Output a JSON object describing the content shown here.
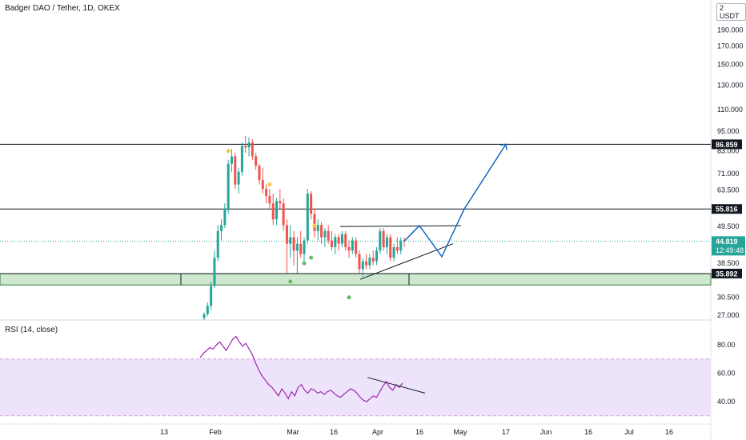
{
  "header": {
    "title": "Badger DAO / Tether, 1D, OKEX",
    "currency": "2 USDT"
  },
  "rsi": {
    "title": "RSI (14, close)"
  },
  "colors": {
    "up": "#26a69a",
    "down": "#ef5350",
    "rsi_line": "#9c27b0",
    "rsi_band": "#ede4fb",
    "zone": "#a5d6a7",
    "forecast": "#1565c0",
    "current_line": "#26a69a",
    "marker_yellow": "#f5c842",
    "marker_green": "#66bb6a"
  },
  "chart_data": {
    "type": "candlestick",
    "price_axis_ticks": [
      "190.000",
      "170.000",
      "150.000",
      "130.000",
      "110.000",
      "95.000",
      "83.000",
      "71.000",
      "63.500",
      "49.500",
      "38.500",
      "30.500",
      "27.000"
    ],
    "rsi_axis_ticks": [
      "80.00",
      "60.00",
      "40.00"
    ],
    "x_tick_labels": [
      "13",
      "Feb",
      "Mar",
      "16",
      "Apr",
      "16",
      "May",
      "17",
      "Jun",
      "16",
      "Jul",
      "16"
    ],
    "horizontal_levels": [
      {
        "label": "86.859",
        "value": 86.859
      },
      {
        "label": "55.816",
        "value": 55.816
      },
      {
        "label": "35.892",
        "value": 35.892
      }
    ],
    "current_price": {
      "label": "44.819",
      "countdown": "12:49:48",
      "value": 44.819
    },
    "candles": [
      {
        "o": 26.5,
        "h": 27.5,
        "l": 26,
        "c": 27.2
      },
      {
        "o": 27.2,
        "h": 29.5,
        "l": 26.8,
        "c": 28.8
      },
      {
        "o": 28.8,
        "h": 34,
        "l": 28,
        "c": 33
      },
      {
        "o": 33,
        "h": 42,
        "l": 32.5,
        "c": 40
      },
      {
        "o": 40,
        "h": 50,
        "l": 39,
        "c": 48
      },
      {
        "o": 48,
        "h": 52,
        "l": 45,
        "c": 50
      },
      {
        "o": 50,
        "h": 58,
        "l": 49,
        "c": 56
      },
      {
        "o": 56,
        "h": 78,
        "l": 54,
        "c": 76
      },
      {
        "o": 76,
        "h": 84,
        "l": 72,
        "c": 80
      },
      {
        "o": 80,
        "h": 82,
        "l": 64,
        "c": 66
      },
      {
        "o": 66,
        "h": 74,
        "l": 62,
        "c": 72
      },
      {
        "o": 72,
        "h": 88,
        "l": 70,
        "c": 86
      },
      {
        "o": 86,
        "h": 92,
        "l": 82,
        "c": 85
      },
      {
        "o": 85,
        "h": 91,
        "l": 80,
        "c": 88
      },
      {
        "o": 88,
        "h": 90,
        "l": 78,
        "c": 80
      },
      {
        "o": 80,
        "h": 82,
        "l": 73,
        "c": 75
      },
      {
        "o": 75,
        "h": 76,
        "l": 66,
        "c": 68
      },
      {
        "o": 68,
        "h": 74,
        "l": 62,
        "c": 64
      },
      {
        "o": 64,
        "h": 66,
        "l": 58,
        "c": 61
      },
      {
        "o": 61,
        "h": 64,
        "l": 56,
        "c": 58
      },
      {
        "o": 58,
        "h": 62,
        "l": 50,
        "c": 52
      },
      {
        "o": 52,
        "h": 60,
        "l": 50,
        "c": 59
      },
      {
        "o": 59,
        "h": 64,
        "l": 56,
        "c": 58
      },
      {
        "o": 58,
        "h": 60,
        "l": 48,
        "c": 50
      },
      {
        "o": 50,
        "h": 52,
        "l": 36,
        "c": 44
      },
      {
        "o": 44,
        "h": 50,
        "l": 40,
        "c": 46
      },
      {
        "o": 46,
        "h": 48,
        "l": 38,
        "c": 42
      },
      {
        "o": 42,
        "h": 46,
        "l": 36,
        "c": 44
      },
      {
        "o": 44,
        "h": 48,
        "l": 40,
        "c": 41
      },
      {
        "o": 41,
        "h": 46,
        "l": 38,
        "c": 45
      },
      {
        "o": 45,
        "h": 64,
        "l": 44,
        "c": 62
      },
      {
        "o": 62,
        "h": 63,
        "l": 52,
        "c": 54
      },
      {
        "o": 54,
        "h": 56,
        "l": 46,
        "c": 48
      },
      {
        "o": 48,
        "h": 52,
        "l": 45,
        "c": 50
      },
      {
        "o": 50,
        "h": 51,
        "l": 44,
        "c": 46
      },
      {
        "o": 46,
        "h": 49,
        "l": 43,
        "c": 48
      },
      {
        "o": 48,
        "h": 50,
        "l": 44,
        "c": 45
      },
      {
        "o": 45,
        "h": 48,
        "l": 42,
        "c": 43
      },
      {
        "o": 43,
        "h": 47,
        "l": 41,
        "c": 46
      },
      {
        "o": 46,
        "h": 47,
        "l": 42,
        "c": 44
      },
      {
        "o": 44,
        "h": 48,
        "l": 43,
        "c": 47
      },
      {
        "o": 47,
        "h": 48,
        "l": 42,
        "c": 43
      },
      {
        "o": 43,
        "h": 45,
        "l": 40,
        "c": 42
      },
      {
        "o": 42,
        "h": 46,
        "l": 41,
        "c": 45
      },
      {
        "o": 45,
        "h": 46,
        "l": 40,
        "c": 41
      },
      {
        "o": 41,
        "h": 42,
        "l": 36,
        "c": 37
      },
      {
        "o": 37,
        "h": 40,
        "l": 35,
        "c": 39
      },
      {
        "o": 39,
        "h": 41,
        "l": 37,
        "c": 38
      },
      {
        "o": 38,
        "h": 41,
        "l": 37,
        "c": 40
      },
      {
        "o": 40,
        "h": 42,
        "l": 38,
        "c": 39
      },
      {
        "o": 39,
        "h": 43,
        "l": 38,
        "c": 42
      },
      {
        "o": 42,
        "h": 49,
        "l": 41,
        "c": 48
      },
      {
        "o": 48,
        "h": 49,
        "l": 42,
        "c": 43
      },
      {
        "o": 43,
        "h": 47,
        "l": 41,
        "c": 46
      },
      {
        "o": 46,
        "h": 47,
        "l": 39,
        "c": 40
      },
      {
        "o": 40,
        "h": 44,
        "l": 39,
        "c": 43
      },
      {
        "o": 43,
        "h": 46,
        "l": 41,
        "c": 42
      },
      {
        "o": 42,
        "h": 46,
        "l": 41,
        "c": 45
      },
      {
        "o": 45,
        "h": 46,
        "l": 43,
        "c": 44.8
      }
    ],
    "rsi_values": [
      71,
      74,
      76,
      78,
      77,
      80,
      82,
      79,
      76,
      80,
      84,
      86,
      82,
      79,
      81,
      77,
      73,
      67,
      62,
      58,
      55,
      52,
      50,
      47,
      44,
      49,
      46,
      42,
      47,
      44,
      50,
      52,
      48,
      46,
      49,
      48,
      46,
      47,
      45,
      47,
      48,
      46,
      44,
      43,
      45,
      47,
      49,
      48,
      46,
      43,
      41,
      40,
      42,
      44,
      43,
      47,
      51,
      54,
      50,
      48,
      52,
      50,
      53
    ],
    "forecast_path": [
      [
        44.819,
        0
      ],
      [
        49.5,
        4
      ],
      [
        38.5,
        8
      ],
      [
        55.816,
        11
      ],
      [
        86.859,
        18
      ]
    ]
  }
}
